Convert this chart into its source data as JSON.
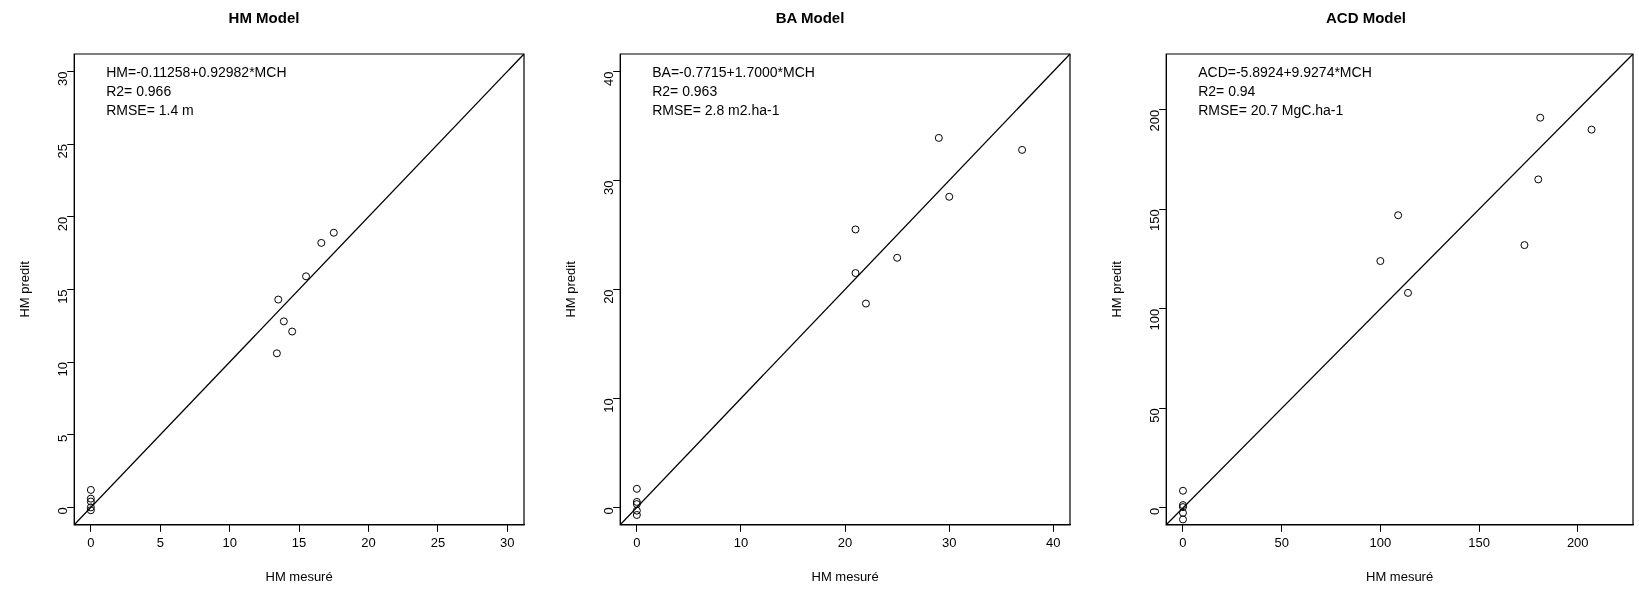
{
  "chart_data": [
    {
      "type": "scatter",
      "title": "HM Model",
      "xlabel": "HM mesuré",
      "ylabel": "HM predit",
      "annotations": [
        "HM=-0.11258+0.92982*MCH",
        "R2= 0.966",
        "RMSE= 1.4 m"
      ],
      "xlim": [
        -1.2,
        31.2
      ],
      "ylim": [
        -1.2,
        31.2
      ],
      "xticks": [
        0,
        5,
        10,
        15,
        20,
        25,
        30
      ],
      "yticks": [
        0,
        5,
        10,
        15,
        20,
        25,
        30
      ],
      "grid": false,
      "legend": false,
      "marker": "circle",
      "series": [
        {
          "color": "#000000",
          "x": [
            0,
            0,
            0,
            0,
            0,
            13.5,
            13.9,
            14.5,
            13.4,
            15.5,
            16.6,
            17.5
          ],
          "values": [
            1.2,
            0.6,
            0.4,
            0,
            -0.2,
            14.3,
            12.8,
            12.1,
            10.6,
            15.9,
            18.2,
            18.9
          ]
        },
        {
          "type": "line",
          "color": "#000000",
          "marker": "none",
          "line_style": "solid",
          "x": [
            -1.2,
            31.2
          ],
          "values": [
            -1.2,
            31.2
          ]
        }
      ]
    },
    {
      "type": "scatter",
      "title": "BA Model",
      "xlabel": "HM mesuré",
      "ylabel": "HM predit",
      "annotations": [
        "BA=-0.7715+1.7000*MCH",
        "R2= 0.963",
        "RMSE= 2.8 m2.ha-1"
      ],
      "xlim": [
        -1.6,
        41.6
      ],
      "ylim": [
        -1.6,
        41.6
      ],
      "xticks": [
        0,
        10,
        20,
        30,
        40
      ],
      "yticks": [
        0,
        10,
        20,
        30,
        40
      ],
      "grid": false,
      "legend": false,
      "marker": "circle",
      "series": [
        {
          "color": "#000000",
          "x": [
            0,
            0,
            0,
            0,
            0,
            21,
            21,
            22,
            25,
            29,
            30,
            37
          ],
          "values": [
            1.7,
            0.5,
            0.3,
            -0.3,
            -0.7,
            25.5,
            21.5,
            18.7,
            22.9,
            33.9,
            28.5,
            32.8
          ]
        },
        {
          "type": "line",
          "color": "#000000",
          "marker": "none",
          "line_style": "solid",
          "x": [
            -1.6,
            41.6
          ],
          "values": [
            -1.6,
            41.6
          ]
        }
      ]
    },
    {
      "type": "scatter",
      "title": "ACD Model",
      "xlabel": "HM mesuré",
      "ylabel": "HM predit",
      "annotations": [
        "ACD=-5.8924+9.9274*MCH",
        "R2= 0.94",
        "RMSE= 20.7 MgC.ha-1"
      ],
      "xlim": [
        -8.5,
        228
      ],
      "ylim": [
        -8.5,
        228
      ],
      "xticks": [
        0,
        50,
        100,
        150,
        200
      ],
      "yticks": [
        0,
        50,
        100,
        150,
        200
      ],
      "grid": false,
      "legend": false,
      "marker": "circle",
      "series": [
        {
          "color": "#000000",
          "x": [
            0,
            0,
            0,
            0,
            0,
            100,
            109,
            114,
            173,
            181,
            180,
            207
          ],
          "values": [
            8.6,
            1.4,
            0.4,
            -2.5,
            -5.8,
            124,
            147,
            108,
            132,
            196,
            165,
            190
          ]
        },
        {
          "type": "line",
          "color": "#000000",
          "marker": "none",
          "line_style": "solid",
          "x": [
            -8.5,
            228
          ],
          "values": [
            -8.5,
            228
          ]
        }
      ]
    }
  ]
}
